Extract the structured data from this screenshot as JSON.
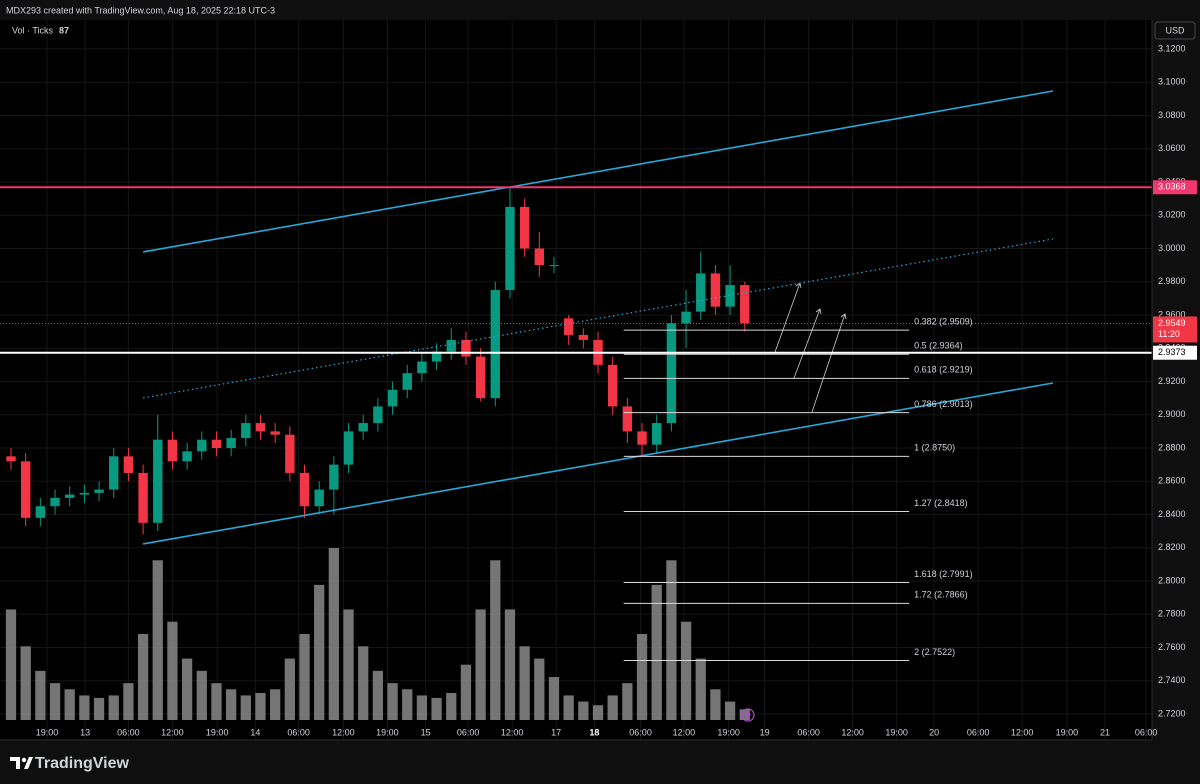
{
  "chart_data": {
    "type": "candlestick",
    "title": "MDX293 created with TradingView.com, Aug 18, 2025 22:18 UTC-3",
    "currency": "USD",
    "brand": "TradingView",
    "volume_label": "Vol · Ticks",
    "up_color": "#089981",
    "down_color": "#f23645",
    "volume_color": "#8a8a8a",
    "grid": true,
    "xlim": [
      0,
      157
    ],
    "ylim": [
      2.7044,
      3.1374
    ],
    "x": [
      1.5,
      3.5,
      5.5,
      7.5,
      9.5,
      11.5,
      13.5,
      15.5,
      17.5,
      19.5,
      21.5,
      23.5,
      25.5,
      27.5,
      29.5,
      31.5,
      33.5,
      35.5,
      37.5,
      39.5,
      41.5,
      43.5,
      45.5,
      47.5,
      49.5,
      51.5,
      53.5,
      55.5,
      57.5,
      59.5,
      61.5,
      63.5,
      65.5,
      67.5,
      69.5,
      71.5,
      73.5,
      75.5,
      77.5,
      79.5,
      81.5,
      83.5,
      85.5,
      87.5,
      89.5,
      91.5,
      93.5,
      95.5,
      97.5,
      99.5,
      101.5
    ],
    "open": [
      2.875,
      2.872,
      2.838,
      2.845,
      2.85,
      2.852,
      2.853,
      2.855,
      2.875,
      2.865,
      2.835,
      2.885,
      2.872,
      2.878,
      2.885,
      2.88,
      2.886,
      2.895,
      2.89,
      2.888,
      2.865,
      2.845,
      2.855,
      2.87,
      2.89,
      2.895,
      2.905,
      2.915,
      2.925,
      2.932,
      2.938,
      2.945,
      2.935,
      2.91,
      2.975,
      3.025,
      3.0,
      2.99,
      2.958,
      2.948,
      2.945,
      2.93,
      2.905,
      2.89,
      2.882,
      2.895,
      2.955,
      2.962,
      2.985,
      2.965,
      2.978
    ],
    "high": [
      2.88,
      2.877,
      2.85,
      2.855,
      2.857,
      2.858,
      2.86,
      2.88,
      2.88,
      2.87,
      2.9,
      2.89,
      2.883,
      2.89,
      2.89,
      2.891,
      2.9,
      2.9,
      2.895,
      2.893,
      2.87,
      2.86,
      2.875,
      2.895,
      2.9,
      2.91,
      2.92,
      2.93,
      2.937,
      2.943,
      2.952,
      2.95,
      2.94,
      2.98,
      3.0368,
      3.03,
      3.01,
      2.995,
      2.96,
      2.952,
      2.95,
      2.935,
      2.91,
      2.895,
      2.9,
      2.96,
      2.975,
      2.998,
      2.99,
      2.99,
      2.98
    ],
    "low": [
      2.867,
      2.833,
      2.833,
      2.84,
      2.845,
      2.847,
      2.848,
      2.85,
      2.86,
      2.828,
      2.83,
      2.867,
      2.867,
      2.873,
      2.875,
      2.875,
      2.881,
      2.885,
      2.883,
      2.86,
      2.838,
      2.84,
      2.84,
      2.865,
      2.885,
      2.89,
      2.9,
      2.91,
      2.92,
      2.927,
      2.933,
      2.93,
      2.908,
      2.905,
      2.97,
      2.995,
      2.983,
      2.985,
      2.942,
      2.94,
      2.925,
      2.9,
      2.883,
      2.875,
      2.877,
      2.89,
      2.94,
      2.957,
      2.96,
      2.96,
      2.95
    ],
    "close": [
      2.872,
      2.838,
      2.845,
      2.85,
      2.852,
      2.853,
      2.855,
      2.875,
      2.865,
      2.835,
      2.885,
      2.872,
      2.878,
      2.885,
      2.88,
      2.886,
      2.895,
      2.89,
      2.888,
      2.865,
      2.845,
      2.855,
      2.87,
      2.89,
      2.895,
      2.905,
      2.915,
      2.925,
      2.932,
      2.938,
      2.945,
      2.935,
      2.91,
      2.975,
      3.025,
      3.0,
      2.99,
      2.99,
      2.948,
      2.945,
      2.93,
      2.905,
      2.89,
      2.882,
      2.895,
      2.955,
      2.962,
      2.985,
      2.965,
      2.978,
      2.955
    ],
    "volume": [
      900,
      600,
      400,
      300,
      250,
      200,
      180,
      200,
      300,
      700,
      1300,
      800,
      500,
      400,
      300,
      250,
      200,
      220,
      250,
      500,
      700,
      1100,
      1400,
      900,
      600,
      400,
      300,
      250,
      200,
      180,
      220,
      450,
      900,
      1300,
      900,
      600,
      500,
      350,
      200,
      150,
      120,
      200,
      300,
      700,
      1100,
      1300,
      800,
      500,
      250,
      150,
      87
    ],
    "yticks": [
      {
        "value": 2.72,
        "label": "2.7200"
      },
      {
        "value": 2.74,
        "label": "2.7400"
      },
      {
        "value": 2.76,
        "label": "2.7600"
      },
      {
        "value": 2.78,
        "label": "2.7800"
      },
      {
        "value": 2.8,
        "label": "2.8000"
      },
      {
        "value": 2.82,
        "label": "2.8200"
      },
      {
        "value": 2.84,
        "label": "2.8400"
      },
      {
        "value": 2.86,
        "label": "2.8600"
      },
      {
        "value": 2.88,
        "label": "2.8800"
      },
      {
        "value": 2.9,
        "label": "2.9000"
      },
      {
        "value": 2.92,
        "label": "2.9200"
      },
      {
        "value": 2.94,
        "label": "2.9400"
      },
      {
        "value": 2.96,
        "label": "2.9600"
      },
      {
        "value": 2.98,
        "label": "2.9800"
      },
      {
        "value": 3.0,
        "label": "3.0000"
      },
      {
        "value": 3.02,
        "label": "3.0200"
      },
      {
        "value": 3.04,
        "label": "3.0400"
      },
      {
        "value": 3.06,
        "label": "3.0600"
      },
      {
        "value": 3.08,
        "label": "3.0800"
      },
      {
        "value": 3.1,
        "label": "3.1000"
      },
      {
        "value": 3.12,
        "label": "3.1200"
      }
    ],
    "xticks": [
      {
        "value": 6.4,
        "label": "19:00"
      },
      {
        "value": 11.6,
        "label": "13"
      },
      {
        "value": 17.5,
        "label": "06:00"
      },
      {
        "value": 23.5,
        "label": "12:00"
      },
      {
        "value": 29.6,
        "label": "19:00"
      },
      {
        "value": 34.8,
        "label": "14"
      },
      {
        "value": 40.7,
        "label": "06:00"
      },
      {
        "value": 46.8,
        "label": "12:00"
      },
      {
        "value": 52.8,
        "label": "19:00"
      },
      {
        "value": 58,
        "label": "15"
      },
      {
        "value": 63.8,
        "label": "06:00"
      },
      {
        "value": 69.8,
        "label": "12:00"
      },
      {
        "value": 75.8,
        "label": "17"
      },
      {
        "value": 81,
        "label": "18"
      },
      {
        "value": 87.3,
        "label": "06:00"
      },
      {
        "value": 93.2,
        "label": "12:00"
      },
      {
        "value": 99.3,
        "label": "19:00"
      },
      {
        "value": 104.2,
        "label": "19"
      },
      {
        "value": 110.2,
        "label": "06:00"
      },
      {
        "value": 116.2,
        "label": "12:00"
      },
      {
        "value": 122.2,
        "label": "19:00"
      },
      {
        "value": 127.3,
        "label": "20"
      },
      {
        "value": 133.3,
        "label": "06:00"
      },
      {
        "value": 139.3,
        "label": "12:00"
      },
      {
        "value": 145.4,
        "label": "19:00"
      },
      {
        "value": 150.6,
        "label": "21"
      },
      {
        "value": 156.2,
        "label": "06:00"
      }
    ],
    "trendlines": [
      {
        "x": [
          19.5,
          143.5
        ],
        "y": [
          2.9979,
          3.0947
        ],
        "color": "#26a9d8",
        "dotted": false
      },
      {
        "x": [
          19.5,
          143.5
        ],
        "y": [
          2.9101,
          3.0057
        ],
        "color": "#26a9d8",
        "dotted": true
      },
      {
        "x": [
          19.5,
          143.5
        ],
        "y": [
          2.8223,
          2.9191
        ],
        "color": "#26a9d8",
        "dotted": false
      }
    ],
    "horizontal_lines": [
      {
        "value": 3.0368,
        "color": "#f23670",
        "text_color": "#ffffff"
      },
      {
        "value": 2.9373,
        "color": "#ffffff",
        "text_color": "#000000"
      }
    ],
    "last_price": {
      "value": 2.9549,
      "color": "#f23645",
      "countdown": "11:20"
    },
    "fib": {
      "x": [
        85,
        123.9
      ],
      "color": "#d9d9d9",
      "levels": [
        {
          "label": "0.382 (2.9509)",
          "value": 2.9509
        },
        {
          "label": "0.5 (2.9364)",
          "value": 2.9364
        },
        {
          "label": "0.618 (2.9219)",
          "value": 2.9219
        },
        {
          "label": "0.786 (2.9013)",
          "value": 2.9013
        },
        {
          "label": "1 (2.8750)",
          "value": 2.875
        },
        {
          "label": "1.27 (2.8418)",
          "value": 2.8418
        },
        {
          "label": "1.618 (2.7991)",
          "value": 2.7991
        },
        {
          "label": "1.72 (2.7866)",
          "value": 2.7866
        },
        {
          "label": "2 (2.7522)",
          "value": 2.7522
        }
      ]
    }
  }
}
